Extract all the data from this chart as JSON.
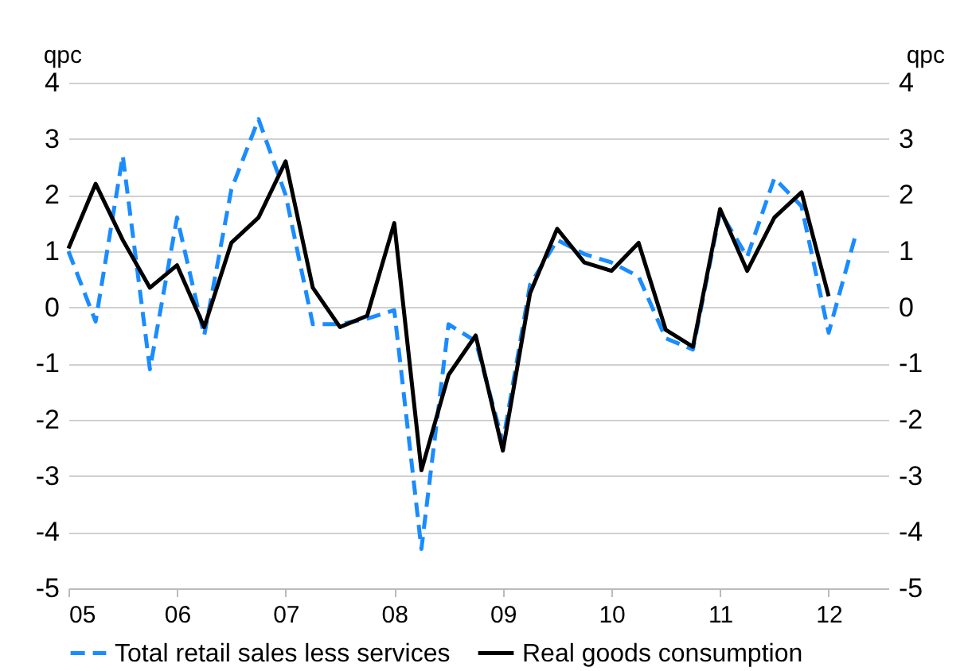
{
  "chart_data": {
    "type": "line",
    "ylabel": "qpc",
    "y2label": "qpc",
    "x": [
      2005,
      2005.25,
      2005.5,
      2005.75,
      2006,
      2006.25,
      2006.5,
      2006.75,
      2007,
      2007.25,
      2007.5,
      2007.75,
      2008,
      2008.25,
      2008.5,
      2008.75,
      2009,
      2009.25,
      2009.5,
      2009.75,
      2010,
      2010.25,
      2010.5,
      2010.75,
      2011,
      2011.25,
      2011.5,
      2011.75,
      2012,
      2012.25
    ],
    "series": [
      {
        "name": "Total retail sales less services",
        "color": "#1a8cff",
        "line_style": "dashed",
        "values": [
          1.0,
          -0.25,
          2.7,
          -1.1,
          1.6,
          -0.5,
          2.1,
          3.35,
          2.0,
          -0.3,
          -0.3,
          -0.2,
          -0.05,
          -4.3,
          -0.3,
          -0.6,
          -2.4,
          0.4,
          1.2,
          0.95,
          0.8,
          0.55,
          -0.55,
          -0.75,
          1.7,
          0.9,
          2.3,
          1.8,
          -0.45,
          1.3
        ]
      },
      {
        "name": "Real goods consumption",
        "color": "#000000",
        "line_style": "solid",
        "axis": "y2",
        "values": [
          1.05,
          2.2,
          1.2,
          0.35,
          0.75,
          -0.35,
          1.15,
          1.6,
          2.6,
          0.35,
          -0.35,
          -0.15,
          1.5,
          -2.9,
          -1.2,
          -0.5,
          -2.55,
          0.25,
          1.4,
          0.8,
          0.65,
          1.15,
          -0.4,
          -0.7,
          1.75,
          0.65,
          1.6,
          2.05,
          0.2,
          null
        ]
      }
    ],
    "xlim": [
      2005,
      2012.55
    ],
    "xticks": [
      {
        "value": 2005,
        "label": "05"
      },
      {
        "value": 2006,
        "label": "06"
      },
      {
        "value": 2007,
        "label": "07"
      },
      {
        "value": 2008,
        "label": "08"
      },
      {
        "value": 2009,
        "label": "09"
      },
      {
        "value": 2010,
        "label": "10"
      },
      {
        "value": 2011,
        "label": "11"
      },
      {
        "value": 2012,
        "label": "12"
      }
    ],
    "ylim": [
      -5,
      4
    ],
    "yticks": [
      -5,
      -4,
      -3,
      -2,
      -1,
      0,
      1,
      2,
      3,
      4
    ],
    "y2lim": [
      -5,
      4
    ],
    "y2ticks": [
      -5,
      -4,
      -3,
      -2,
      -1,
      0,
      1,
      2,
      3,
      4
    ],
    "grid": "y",
    "legend": "bottom"
  }
}
